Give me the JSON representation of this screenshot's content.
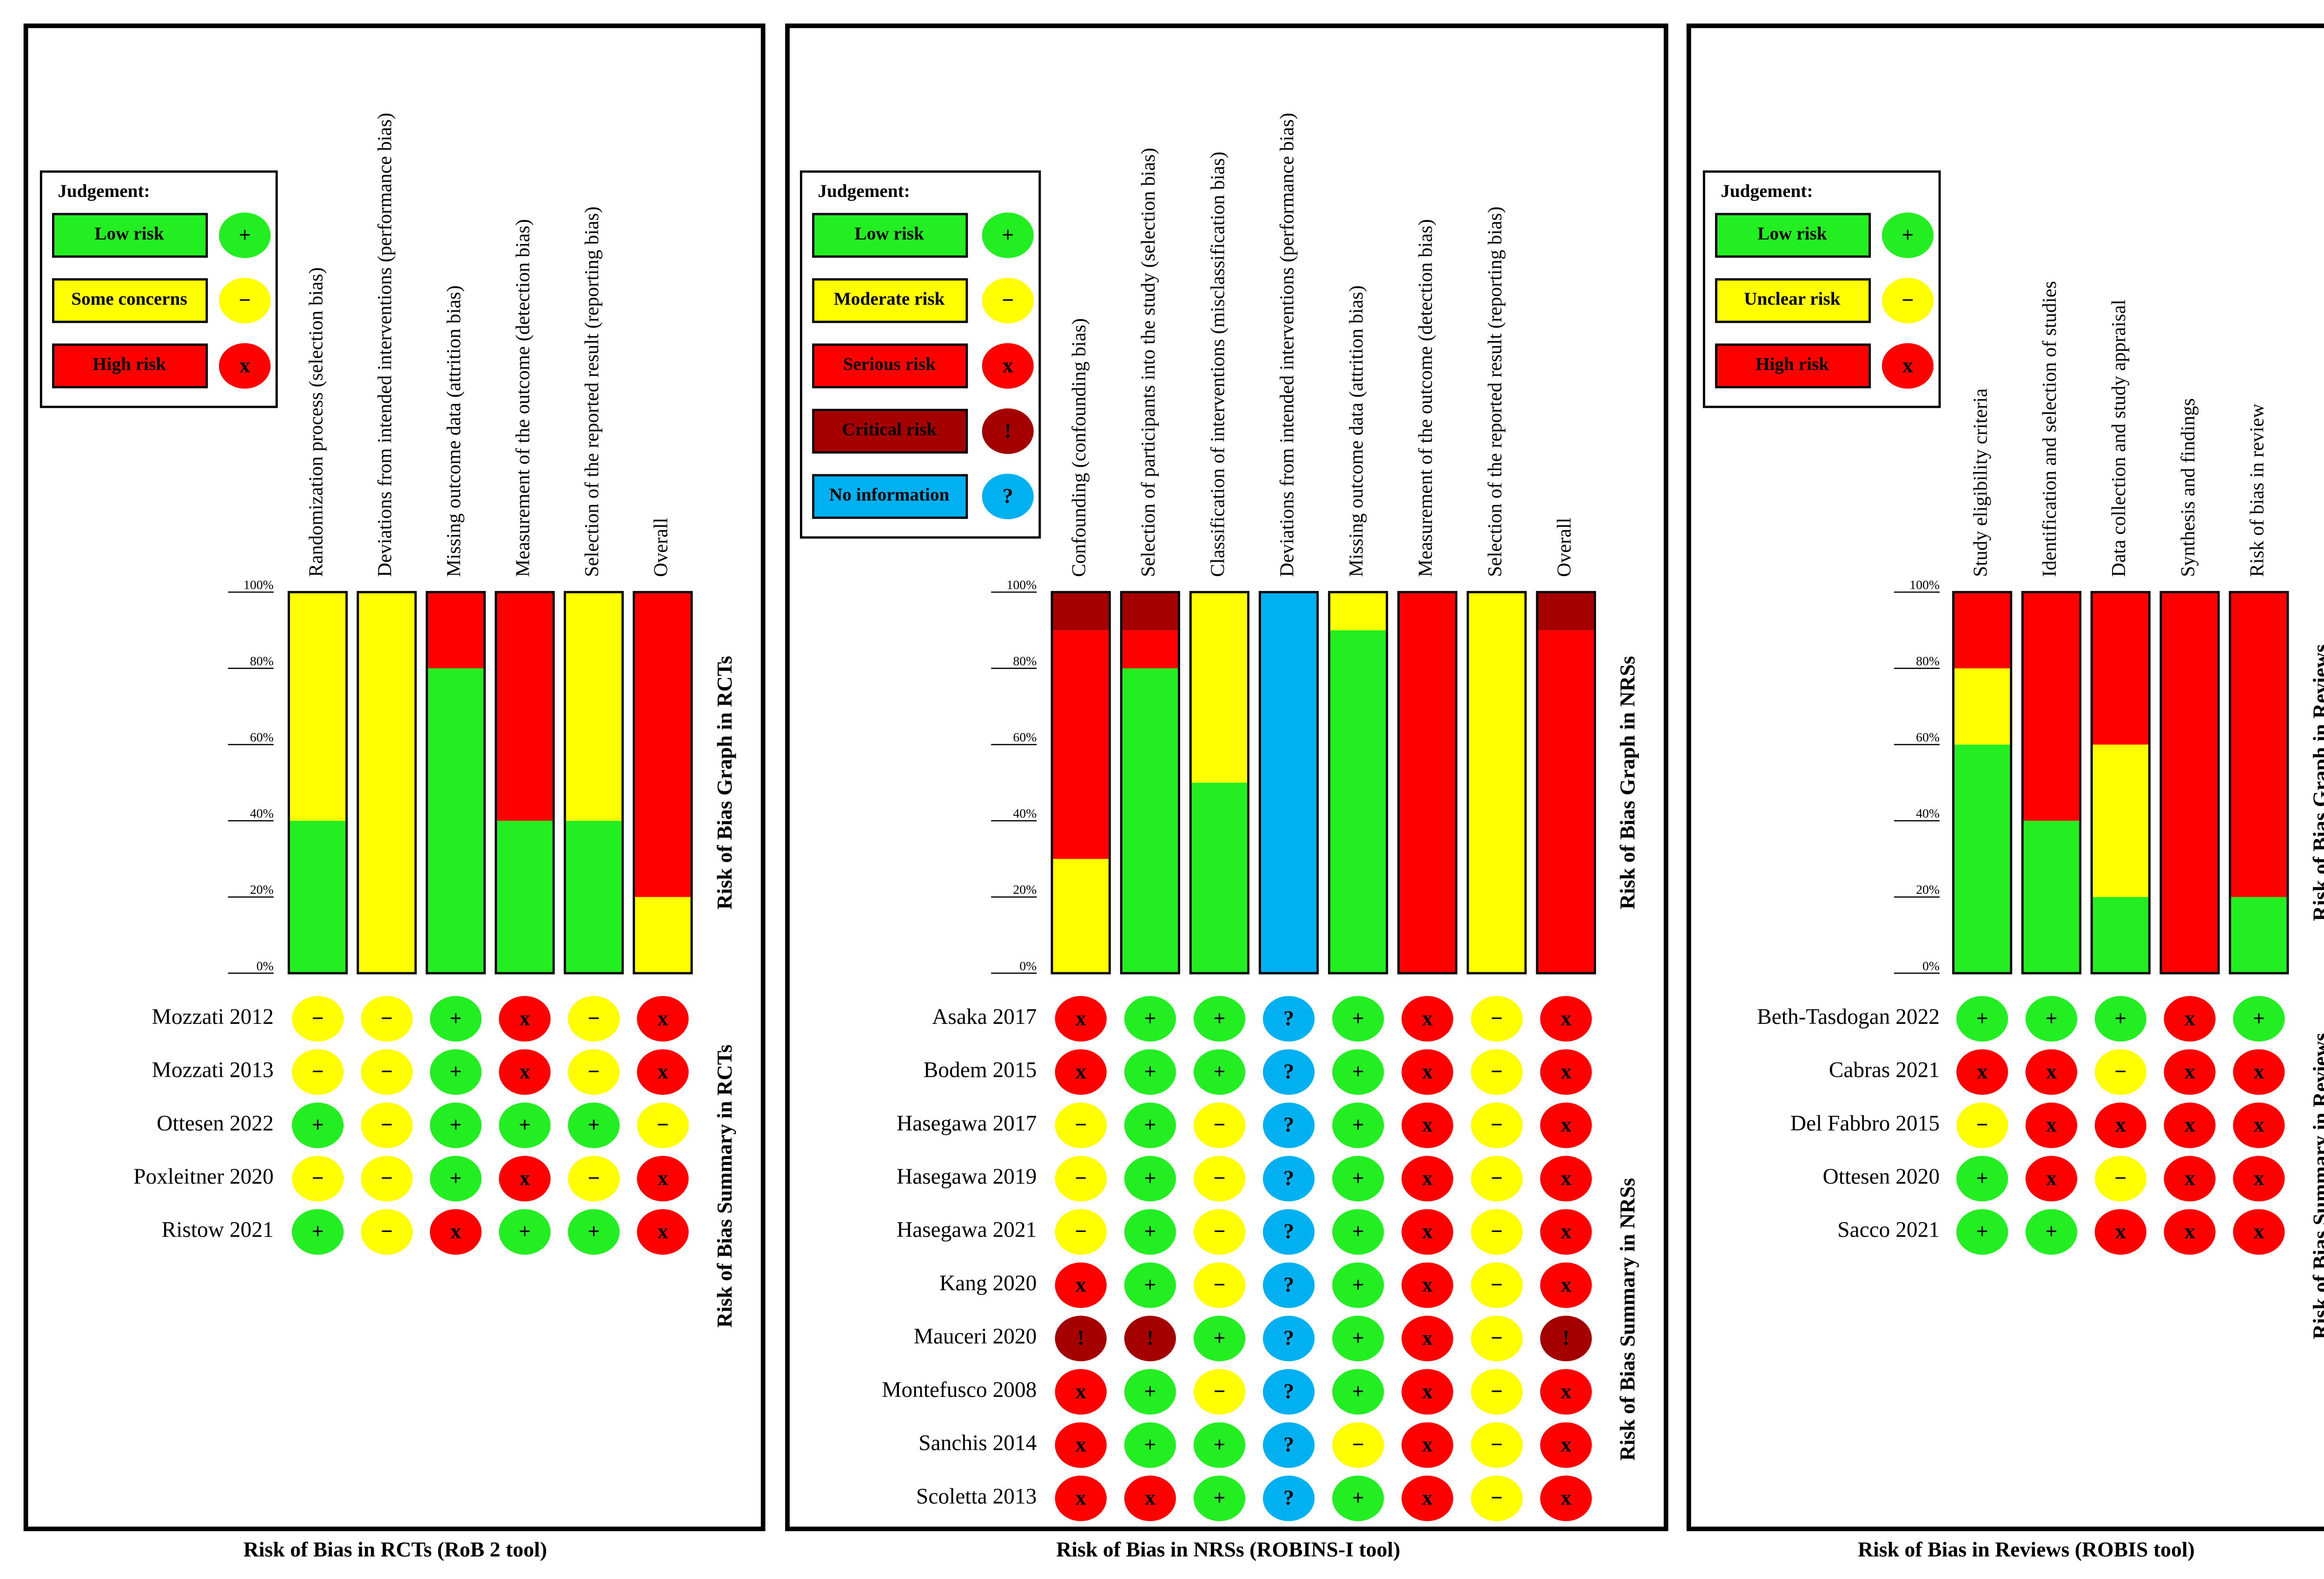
{
  "chart_data": [
    {
      "type": "risk_of_bias",
      "title": "Risk of Bias in RCTs (RoB 2 tool)",
      "legend_title": "Judgement:",
      "graph_label": "Risk of Bias Graph in RCTs",
      "summary_label": "Risk of Bias Summary in RCTs",
      "domains": [
        "Randomization process (selection bias)",
        "Deviations from intended interventions (performance bias)",
        "Missing outcome data (attrition bias)",
        "Measurement of the outcome (detection bias)",
        "Selection of the reported result (reporting bias)",
        "Overall"
      ],
      "ylim": [
        0,
        100
      ],
      "yticks": [
        {
          "value": 0,
          "label": "0%"
        },
        {
          "value": 20,
          "label": "20%"
        },
        {
          "value": 40,
          "label": "40%"
        },
        {
          "value": 60,
          "label": "60%"
        },
        {
          "value": 80,
          "label": "80%"
        },
        {
          "value": 100,
          "label": "100%"
        }
      ],
      "series": [
        {
          "name": "Low risk",
          "color": "#22ee22",
          "symbol": "+",
          "values": [
            40,
            0,
            80,
            40,
            40,
            0
          ]
        },
        {
          "name": "Some concerns",
          "color": "#ffff00",
          "symbol": "−",
          "values": [
            60,
            100,
            0,
            0,
            60,
            20
          ]
        },
        {
          "name": "High risk",
          "color": "#ff0000",
          "symbol": "x",
          "values": [
            0,
            0,
            20,
            60,
            0,
            80
          ]
        }
      ],
      "studies": [
        "Mozzati 2012",
        "Mozzati 2013",
        "Ottesen 2022",
        "Poxleitner 2020",
        "Ristow 2021"
      ],
      "judgements": [
        [
          "−",
          "−",
          "+",
          "x",
          "−",
          "x"
        ],
        [
          "−",
          "−",
          "+",
          "x",
          "−",
          "x"
        ],
        [
          "+",
          "−",
          "+",
          "+",
          "+",
          "−"
        ],
        [
          "−",
          "−",
          "+",
          "x",
          "−",
          "x"
        ],
        [
          "+",
          "−",
          "x",
          "+",
          "+",
          "x"
        ]
      ]
    },
    {
      "type": "risk_of_bias",
      "title": "Risk of Bias in NRSs (ROBINS-I tool)",
      "legend_title": "Judgement:",
      "graph_label": "Risk of Bias Graph in NRSs",
      "summary_label": "Risk of Bias Summary in NRSs",
      "domains": [
        "Confounding (confounding bias)",
        "Selection of participants into the study (selection bias)",
        "Classification of interventions (misclassification bias)",
        "Deviations from intended interventions (performance bias)",
        "Missing outcome data (attrition bias)",
        "Measurement of the outcome (detection bias)",
        "Selection of the reported result (reporting bias)",
        "Overall"
      ],
      "ylim": [
        0,
        100
      ],
      "yticks": [
        {
          "value": 0,
          "label": "0%"
        },
        {
          "value": 20,
          "label": "20%"
        },
        {
          "value": 40,
          "label": "40%"
        },
        {
          "value": 60,
          "label": "60%"
        },
        {
          "value": 80,
          "label": "80%"
        },
        {
          "value": 100,
          "label": "100%"
        }
      ],
      "series": [
        {
          "name": "Low risk",
          "color": "#22ee22",
          "symbol": "+",
          "values": [
            0,
            80,
            50,
            0,
            90,
            0,
            0,
            0
          ]
        },
        {
          "name": "Moderate risk",
          "color": "#ffff00",
          "symbol": "−",
          "values": [
            30,
            0,
            50,
            0,
            10,
            0,
            100,
            0
          ]
        },
        {
          "name": "Serious risk",
          "color": "#ff0000",
          "symbol": "x",
          "values": [
            60,
            10,
            0,
            0,
            0,
            100,
            0,
            90
          ]
        },
        {
          "name": "Critical risk",
          "color": "#a50000",
          "symbol": "!",
          "values": [
            10,
            10,
            0,
            0,
            0,
            0,
            0,
            10
          ]
        },
        {
          "name": "No information",
          "color": "#00b0f0",
          "symbol": "?",
          "values": [
            0,
            0,
            0,
            100,
            0,
            0,
            0,
            0
          ]
        }
      ],
      "studies": [
        "Asaka 2017",
        "Bodem 2015",
        "Hasegawa 2017",
        "Hasegawa 2019",
        "Hasegawa 2021",
        "Kang 2020",
        "Mauceri 2020",
        "Montefusco 2008",
        "Sanchis 2014",
        "Scoletta 2013"
      ],
      "judgements": [
        [
          "x",
          "+",
          "+",
          "?",
          "+",
          "x",
          "−",
          "x"
        ],
        [
          "x",
          "+",
          "+",
          "?",
          "+",
          "x",
          "−",
          "x"
        ],
        [
          "−",
          "+",
          "−",
          "?",
          "+",
          "x",
          "−",
          "x"
        ],
        [
          "−",
          "+",
          "−",
          "?",
          "+",
          "x",
          "−",
          "x"
        ],
        [
          "−",
          "+",
          "−",
          "?",
          "+",
          "x",
          "−",
          "x"
        ],
        [
          "x",
          "+",
          "−",
          "?",
          "+",
          "x",
          "−",
          "x"
        ],
        [
          "!",
          "!",
          "+",
          "?",
          "+",
          "x",
          "−",
          "!"
        ],
        [
          "x",
          "+",
          "−",
          "?",
          "+",
          "x",
          "−",
          "x"
        ],
        [
          "x",
          "+",
          "+",
          "?",
          "−",
          "x",
          "−",
          "x"
        ],
        [
          "x",
          "x",
          "+",
          "?",
          "+",
          "x",
          "−",
          "x"
        ]
      ]
    },
    {
      "type": "risk_of_bias",
      "title": "Risk of Bias in Reviews (ROBIS tool)",
      "legend_title": "Judgement:",
      "graph_label": "Risk of Bias Graph in Reviews",
      "summary_label": "Risk of Bias Summary in Reviews",
      "domains": [
        "Study eligibility criteria",
        "Identification and selection of studies",
        "Data collection and study appraisal",
        "Synthesis and findings",
        "Risk of bias in review"
      ],
      "ylim": [
        0,
        100
      ],
      "yticks": [
        {
          "value": 0,
          "label": "0%"
        },
        {
          "value": 20,
          "label": "20%"
        },
        {
          "value": 40,
          "label": "40%"
        },
        {
          "value": 60,
          "label": "60%"
        },
        {
          "value": 80,
          "label": "80%"
        },
        {
          "value": 100,
          "label": "100%"
        }
      ],
      "series": [
        {
          "name": "Low risk",
          "color": "#22ee22",
          "symbol": "+",
          "values": [
            60,
            40,
            20,
            0,
            20
          ]
        },
        {
          "name": "Unclear risk",
          "color": "#ffff00",
          "symbol": "−",
          "values": [
            20,
            0,
            40,
            0,
            0
          ]
        },
        {
          "name": "High risk",
          "color": "#ff0000",
          "symbol": "x",
          "values": [
            20,
            60,
            40,
            100,
            80
          ]
        }
      ],
      "studies": [
        "Beth-Tasdogan 2022",
        "Cabras 2021",
        "Del Fabbro 2015",
        "Ottesen 2020",
        "Sacco 2021"
      ],
      "judgements": [
        [
          "+",
          "+",
          "+",
          "x",
          "+"
        ],
        [
          "x",
          "x",
          "−",
          "x",
          "x"
        ],
        [
          "−",
          "x",
          "x",
          "x",
          "x"
        ],
        [
          "+",
          "x",
          "−",
          "x",
          "x"
        ],
        [
          "+",
          "+",
          "x",
          "x",
          "x"
        ]
      ]
    }
  ]
}
